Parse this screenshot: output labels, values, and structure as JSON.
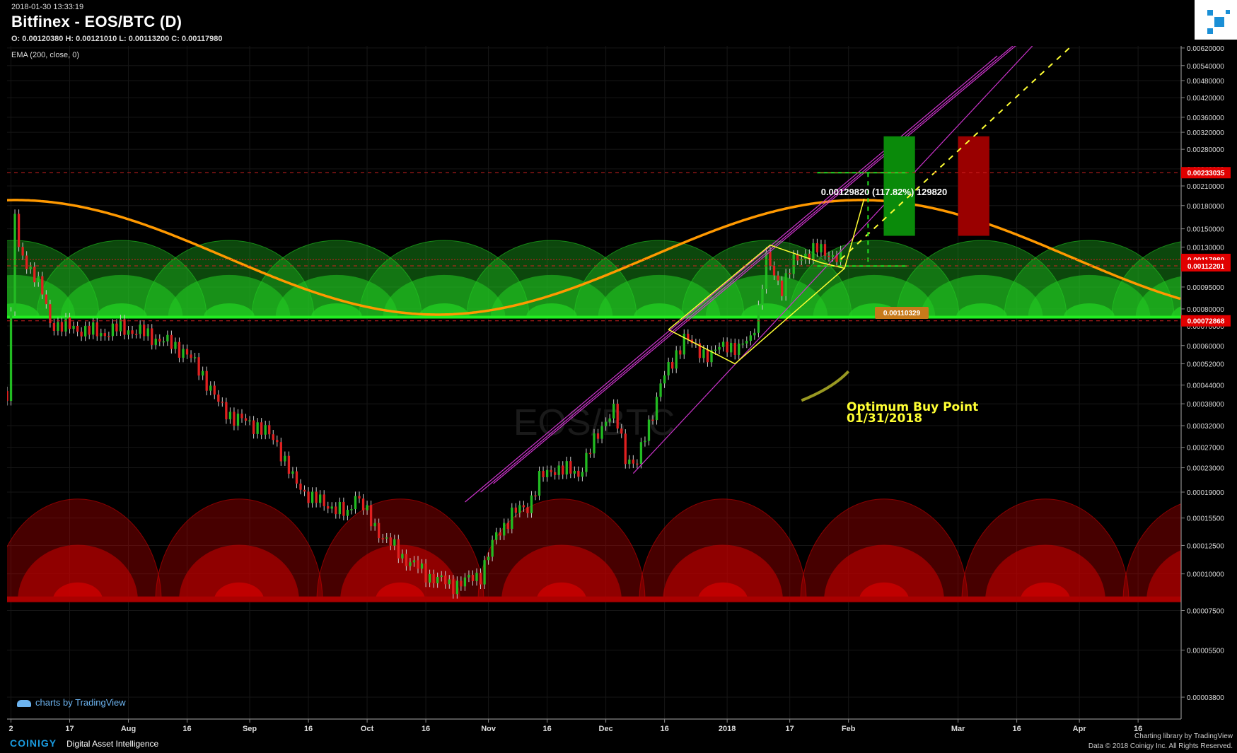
{
  "header": {
    "timestamp": "2018-01-30 13:33:19",
    "title": "Bitfinex - EOS/BTC (D)",
    "ohlc": "O: 0.00120380 H: 0.00121010 L: 0.00113200 C: 0.00117980",
    "indicator": "EMA (200, close, 0)"
  },
  "watermark": {
    "symbol": "EOS/BTC"
  },
  "annotations": {
    "measure_label": "0.00129820 (117.82%) 129820",
    "entry_badge": "0.00110329",
    "buy_point_line1": "Optimum Buy Point",
    "buy_point_line2": "01/31/2018"
  },
  "footer": {
    "tv_credit": "charts by TradingView",
    "brand": "COINIGY",
    "tagline": "Digital Asset Intelligence",
    "library_line1": "Charting library by",
    "library_brand": "TradingView",
    "copyright": "Data © 2018",
    "copyright2": "Coinigy Inc. All Rights Reserved."
  },
  "colors": {
    "background": "#000000",
    "up_candle": "#22bb22",
    "down_candle": "#e02020",
    "ema_line": "#ff9900",
    "trend_channel": "#cc33cc",
    "annotation": "#ffff33",
    "price_label_bg": "#e00000",
    "green_arc": "#22cc22",
    "red_arc": "#cc0000"
  },
  "chart_data": {
    "type": "candlestick",
    "title": "Bitfinex - EOS/BTC (D)",
    "y_axis": {
      "scale": "log",
      "ylim": [
        3.2e-05,
        0.0063
      ],
      "ticks": [
        "0.00620000",
        "0.00540000",
        "0.00480000",
        "0.00420000",
        "0.00360000",
        "0.00320000",
        "0.00280000",
        "0.00240000",
        "0.00210000",
        "0.00180000",
        "0.00150000",
        "0.00130000",
        "0.00110000",
        "0.00095000",
        "0.00080000",
        "0.00070000",
        "0.00060000",
        "0.00052000",
        "0.00044000",
        "0.00038000",
        "0.00032000",
        "0.00027000",
        "0.00023000",
        "0.00019000",
        "0.00015500",
        "0.00012500",
        "0.00010000",
        "0.00007500",
        "0.00005500",
        "0.00003800"
      ]
    },
    "x_axis": {
      "range": [
        "2017-07-01",
        "2018-04-27"
      ],
      "ticks": [
        {
          "label": "2",
          "date": "2017-07-02"
        },
        {
          "label": "17",
          "date": "2017-07-17"
        },
        {
          "label": "Aug",
          "date": "2017-08-01"
        },
        {
          "label": "16",
          "date": "2017-08-16"
        },
        {
          "label": "Sep",
          "date": "2017-09-01"
        },
        {
          "label": "16",
          "date": "2017-09-16"
        },
        {
          "label": "Oct",
          "date": "2017-10-01"
        },
        {
          "label": "16",
          "date": "2017-10-16"
        },
        {
          "label": "Nov",
          "date": "2017-11-01"
        },
        {
          "label": "16",
          "date": "2017-11-16"
        },
        {
          "label": "Dec",
          "date": "2017-12-01"
        },
        {
          "label": "16",
          "date": "2017-12-16"
        },
        {
          "label": "2018",
          "date": "2018-01-01"
        },
        {
          "label": "17",
          "date": "2018-01-17"
        },
        {
          "label": "Feb",
          "date": "2018-02-01"
        },
        {
          "label": "Mar",
          "date": "2018-03-01"
        },
        {
          "label": "16",
          "date": "2018-03-16"
        },
        {
          "label": "Apr",
          "date": "2018-04-01"
        },
        {
          "label": "16",
          "date": "2018-04-16"
        }
      ]
    },
    "price_labels": [
      {
        "value": "0.00233035",
        "price": 0.00233035
      },
      {
        "value": "0.00117980",
        "price": 0.0011798
      },
      {
        "value": "0.00112201",
        "price": 0.00112201
      },
      {
        "value": "0.00072868",
        "price": 0.00072868
      }
    ],
    "close_path": [
      [
        "2017-07-01",
        0.00042
      ],
      [
        "2017-07-02",
        0.00075
      ],
      [
        "2017-07-03",
        0.0017
      ],
      [
        "2017-07-04",
        0.00125
      ],
      [
        "2017-07-06",
        0.00115
      ],
      [
        "2017-07-08",
        0.00105
      ],
      [
        "2017-07-10",
        0.0009
      ],
      [
        "2017-07-12",
        0.00072
      ],
      [
        "2017-07-15",
        0.0007
      ],
      [
        "2017-07-20",
        0.00068
      ],
      [
        "2017-07-25",
        0.00066
      ],
      [
        "2017-07-30",
        0.00069
      ],
      [
        "2017-08-05",
        0.00066
      ],
      [
        "2017-08-10",
        0.00062
      ],
      [
        "2017-08-15",
        0.00058
      ],
      [
        "2017-08-20",
        0.00048
      ],
      [
        "2017-08-24",
        0.00038
      ],
      [
        "2017-08-28",
        0.00034
      ],
      [
        "2017-09-03",
        0.00032
      ],
      [
        "2017-09-08",
        0.00028
      ],
      [
        "2017-09-12",
        0.00021
      ],
      [
        "2017-09-17",
        0.00018
      ],
      [
        "2017-09-22",
        0.00017
      ],
      [
        "2017-09-26",
        0.000158
      ],
      [
        "2017-09-28",
        0.00019
      ],
      [
        "2017-10-02",
        0.00015
      ],
      [
        "2017-10-06",
        0.00013
      ],
      [
        "2017-10-10",
        0.000115
      ],
      [
        "2017-10-16",
        0.0001
      ],
      [
        "2017-10-22",
        9.2e-05
      ],
      [
        "2017-10-26",
        9.4e-05
      ],
      [
        "2017-10-30",
        0.0001
      ],
      [
        "2017-11-03",
        0.000135
      ],
      [
        "2017-11-07",
        0.00016
      ],
      [
        "2017-11-11",
        0.00017
      ],
      [
        "2017-11-14",
        0.00021
      ],
      [
        "2017-11-18",
        0.00023
      ],
      [
        "2017-11-24",
        0.00022
      ],
      [
        "2017-11-28",
        0.00028
      ],
      [
        "2017-12-01",
        0.00034
      ],
      [
        "2017-12-03",
        0.00036
      ],
      [
        "2017-12-06",
        0.00025
      ],
      [
        "2017-12-09",
        0.00024
      ],
      [
        "2017-12-12",
        0.00032
      ],
      [
        "2017-12-15",
        0.00045
      ],
      [
        "2017-12-18",
        0.00052
      ],
      [
        "2017-12-21",
        0.00065
      ],
      [
        "2017-12-24",
        0.00058
      ],
      [
        "2017-12-28",
        0.00056
      ],
      [
        "2018-01-01",
        0.00061
      ],
      [
        "2018-01-04",
        0.00058
      ],
      [
        "2018-01-07",
        0.00064
      ],
      [
        "2018-01-09",
        0.0008
      ],
      [
        "2018-01-11",
        0.00118
      ],
      [
        "2018-01-13",
        0.00105
      ],
      [
        "2018-01-15",
        0.00095
      ],
      [
        "2018-01-18",
        0.00115
      ],
      [
        "2018-01-21",
        0.00124
      ],
      [
        "2018-01-24",
        0.00127
      ],
      [
        "2018-01-27",
        0.00124
      ],
      [
        "2018-01-30",
        0.0011798
      ]
    ],
    "ema_200": {
      "min": 0.000765,
      "max": 0.00188,
      "trough_date": "2017-10-21",
      "peak_dates": [
        "2017-07-03",
        "2018-02-04"
      ]
    },
    "cycle_arcs": {
      "green_base": 0.00075,
      "green_top": 0.00137,
      "red_base": 8.1e-05,
      "red_top": 0.00018
    },
    "ema_legend": "EMA (200, close, 0)"
  }
}
